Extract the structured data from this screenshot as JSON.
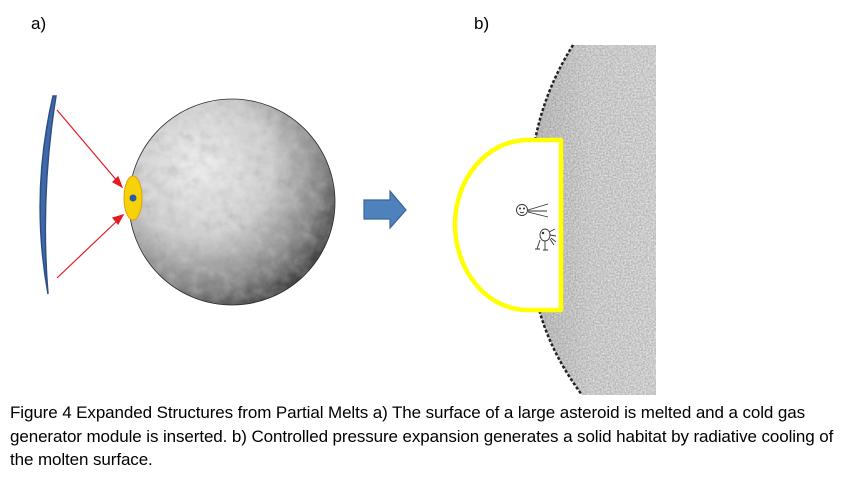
{
  "figure": {
    "panel_a_label": "a)",
    "panel_b_label": "b)",
    "colors": {
      "mirror": "#3f69a8",
      "ray": "#e31b23",
      "melt_spot": "#f6d20b",
      "melt_core": "#2b5aa6",
      "arrow": "#4f81bd",
      "habitat_outline": "#ffff00"
    },
    "icons": [
      "mirror-icon",
      "asteroid-icon",
      "melt-spot-icon",
      "arrow-right-icon",
      "habitat-dome-icon",
      "astronaut-figure-icon",
      "creature-figure-icon"
    ]
  },
  "caption": {
    "text": "Figure 4 Expanded Structures from Partial Melts a) The surface of a large asteroid is melted and a cold gas generator module is inserted. b) Controlled pressure expansion generates a solid habitat by radiative cooling of the molten surface."
  }
}
